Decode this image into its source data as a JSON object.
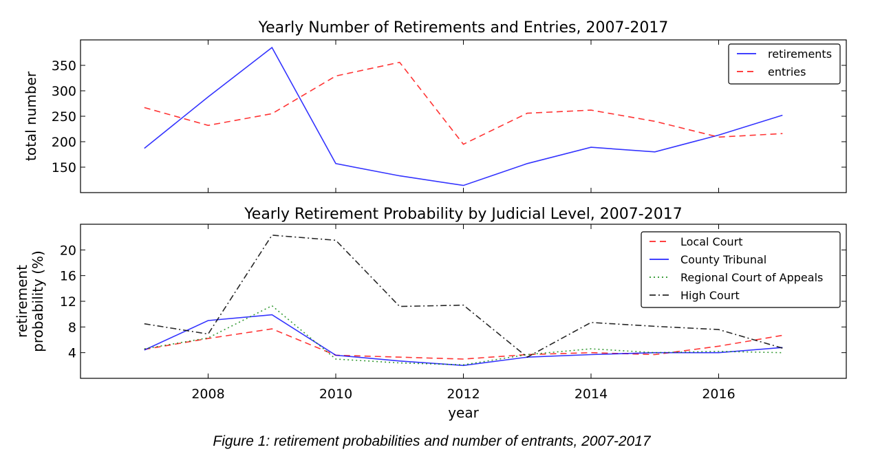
{
  "caption": "Figure 1: retirement probabilities and number of entrants, 2007-2017",
  "chart_data": [
    {
      "type": "line",
      "title": "Yearly Number of Retirements and Entries, 2007-2017",
      "xlabel": "",
      "ylabel": "total number",
      "x": [
        2007,
        2008,
        2009,
        2010,
        2011,
        2012,
        2013,
        2014,
        2015,
        2016,
        2017
      ],
      "xlim": [
        2006,
        2018
      ],
      "ylim": [
        100,
        400
      ],
      "yticks": [
        150,
        200,
        250,
        300,
        350
      ],
      "series": [
        {
          "name": "retirements",
          "color": "#0000ff",
          "style": "solid",
          "values": [
            187,
            288,
            385,
            157,
            133,
            114,
            157,
            189,
            180,
            213,
            252
          ]
        },
        {
          "name": "entries",
          "color": "#ff0000",
          "style": "dashed",
          "values": [
            267,
            232,
            255,
            329,
            356,
            195,
            256,
            262,
            240,
            209,
            216
          ]
        }
      ],
      "legend": "top-right",
      "grid": false
    },
    {
      "type": "line",
      "title": "Yearly Retirement Probability by Judicial Level, 2007-2017",
      "xlabel": "year",
      "ylabel": "retirement probability (%)",
      "ylabel_lines": [
        "retirement",
        "probability (%)"
      ],
      "x": [
        2007,
        2008,
        2009,
        2010,
        2011,
        2012,
        2013,
        2014,
        2015,
        2016,
        2017
      ],
      "xlim": [
        2006,
        2018
      ],
      "ylim": [
        0,
        24
      ],
      "xticks": [
        2008,
        2010,
        2012,
        2014,
        2016
      ],
      "yticks": [
        4,
        8,
        12,
        16,
        20
      ],
      "series": [
        {
          "name": "Local Court",
          "color": "#ff0000",
          "style": "dashed",
          "values": [
            4.5,
            6.2,
            7.7,
            3.6,
            3.3,
            3.0,
            3.7,
            4.0,
            3.7,
            5.0,
            6.7
          ]
        },
        {
          "name": "County Tribunal",
          "color": "#0000ff",
          "style": "solid",
          "values": [
            4.4,
            9.0,
            9.9,
            3.6,
            2.7,
            2.0,
            3.3,
            3.7,
            4.0,
            4.0,
            4.8
          ]
        },
        {
          "name": "Regional Court of Appeals",
          "color": "#008000",
          "style": "dotted",
          "values": [
            4.6,
            6.3,
            11.3,
            3.0,
            2.4,
            2.1,
            3.7,
            4.6,
            4.0,
            4.2,
            4.0
          ]
        },
        {
          "name": "High Court",
          "color": "#000000",
          "style": "dashdot",
          "values": [
            8.5,
            6.9,
            22.3,
            21.5,
            11.2,
            11.4,
            3.3,
            8.7,
            8.1,
            7.6,
            4.7
          ]
        }
      ],
      "legend": "top-right",
      "grid": false
    }
  ]
}
